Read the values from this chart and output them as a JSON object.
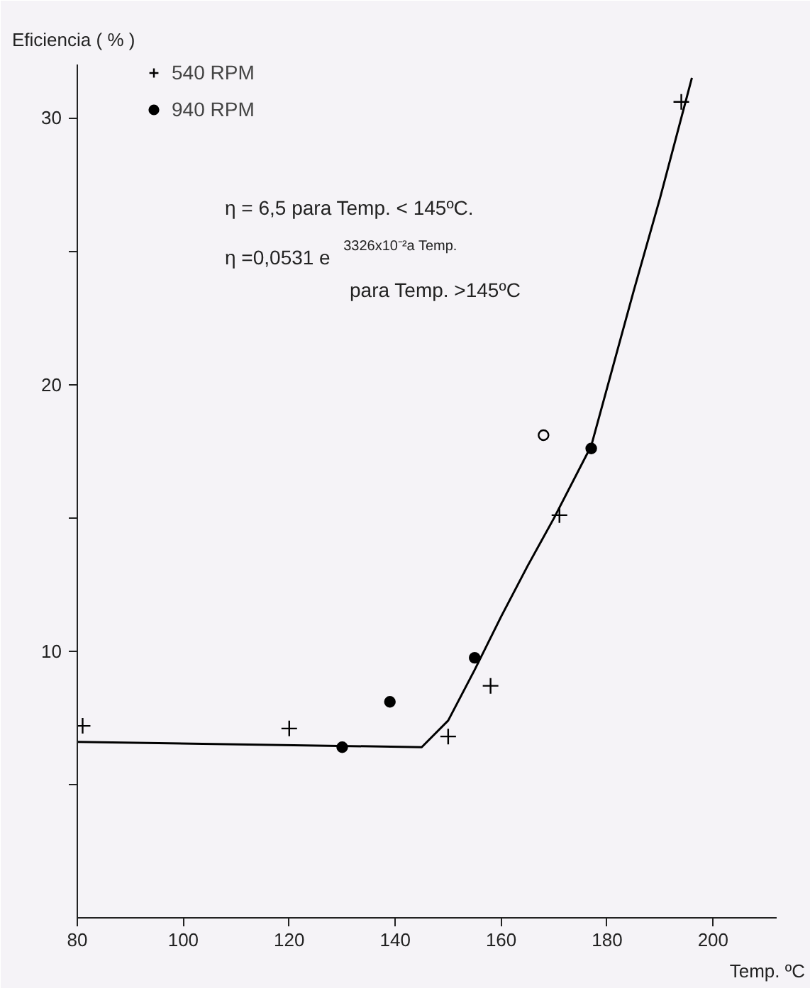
{
  "chart_data": {
    "type": "scatter",
    "xlabel": "Temp. ºC",
    "ylabel": "Eficiencia ( % )",
    "xlim": [
      80,
      212
    ],
    "ylim": [
      0,
      32
    ],
    "xticks": [
      80,
      100,
      120,
      140,
      160,
      180,
      200
    ],
    "yticks": [
      {
        "value": 5,
        "label": null
      },
      10,
      {
        "value": 15,
        "label": null
      },
      20,
      {
        "value": 25,
        "label": null
      },
      30
    ],
    "grid": false,
    "legend": "top left",
    "annotations": [
      "η = 6,5 para Temp. < 145ºC.",
      "η =0,0531 e$^{3326x10⁻²a Temp.}$",
      "para Temp. >145ºC"
    ],
    "series": [
      {
        "type": "line",
        "color": "#000000",
        "marker": "none",
        "line_style": "solid",
        "x": [
          80,
          145,
          150,
          155,
          160,
          165,
          170,
          177,
          185,
          190,
          196
        ],
        "values": [
          6.6,
          6.4,
          7.4,
          9.3,
          11.3,
          13.2,
          15.0,
          17.7,
          23.5,
          27.0,
          31.5
        ]
      },
      {
        "name": "540 RPM",
        "marker": "cross",
        "color": "#000000",
        "x": [
          81,
          120,
          150,
          158,
          171,
          194
        ],
        "values": [
          7.2,
          7.1,
          6.8,
          8.7,
          15.1,
          30.6
        ]
      },
      {
        "name": "940 RPM",
        "marker": "circle",
        "color": "#000000",
        "x": [
          130,
          139,
          155,
          177
        ],
        "values": [
          6.4,
          8.1,
          9.75,
          17.6
        ]
      },
      {
        "marker": "circle_open",
        "color": "#000000",
        "x": [
          168
        ],
        "values": [
          18.1
        ]
      }
    ]
  }
}
